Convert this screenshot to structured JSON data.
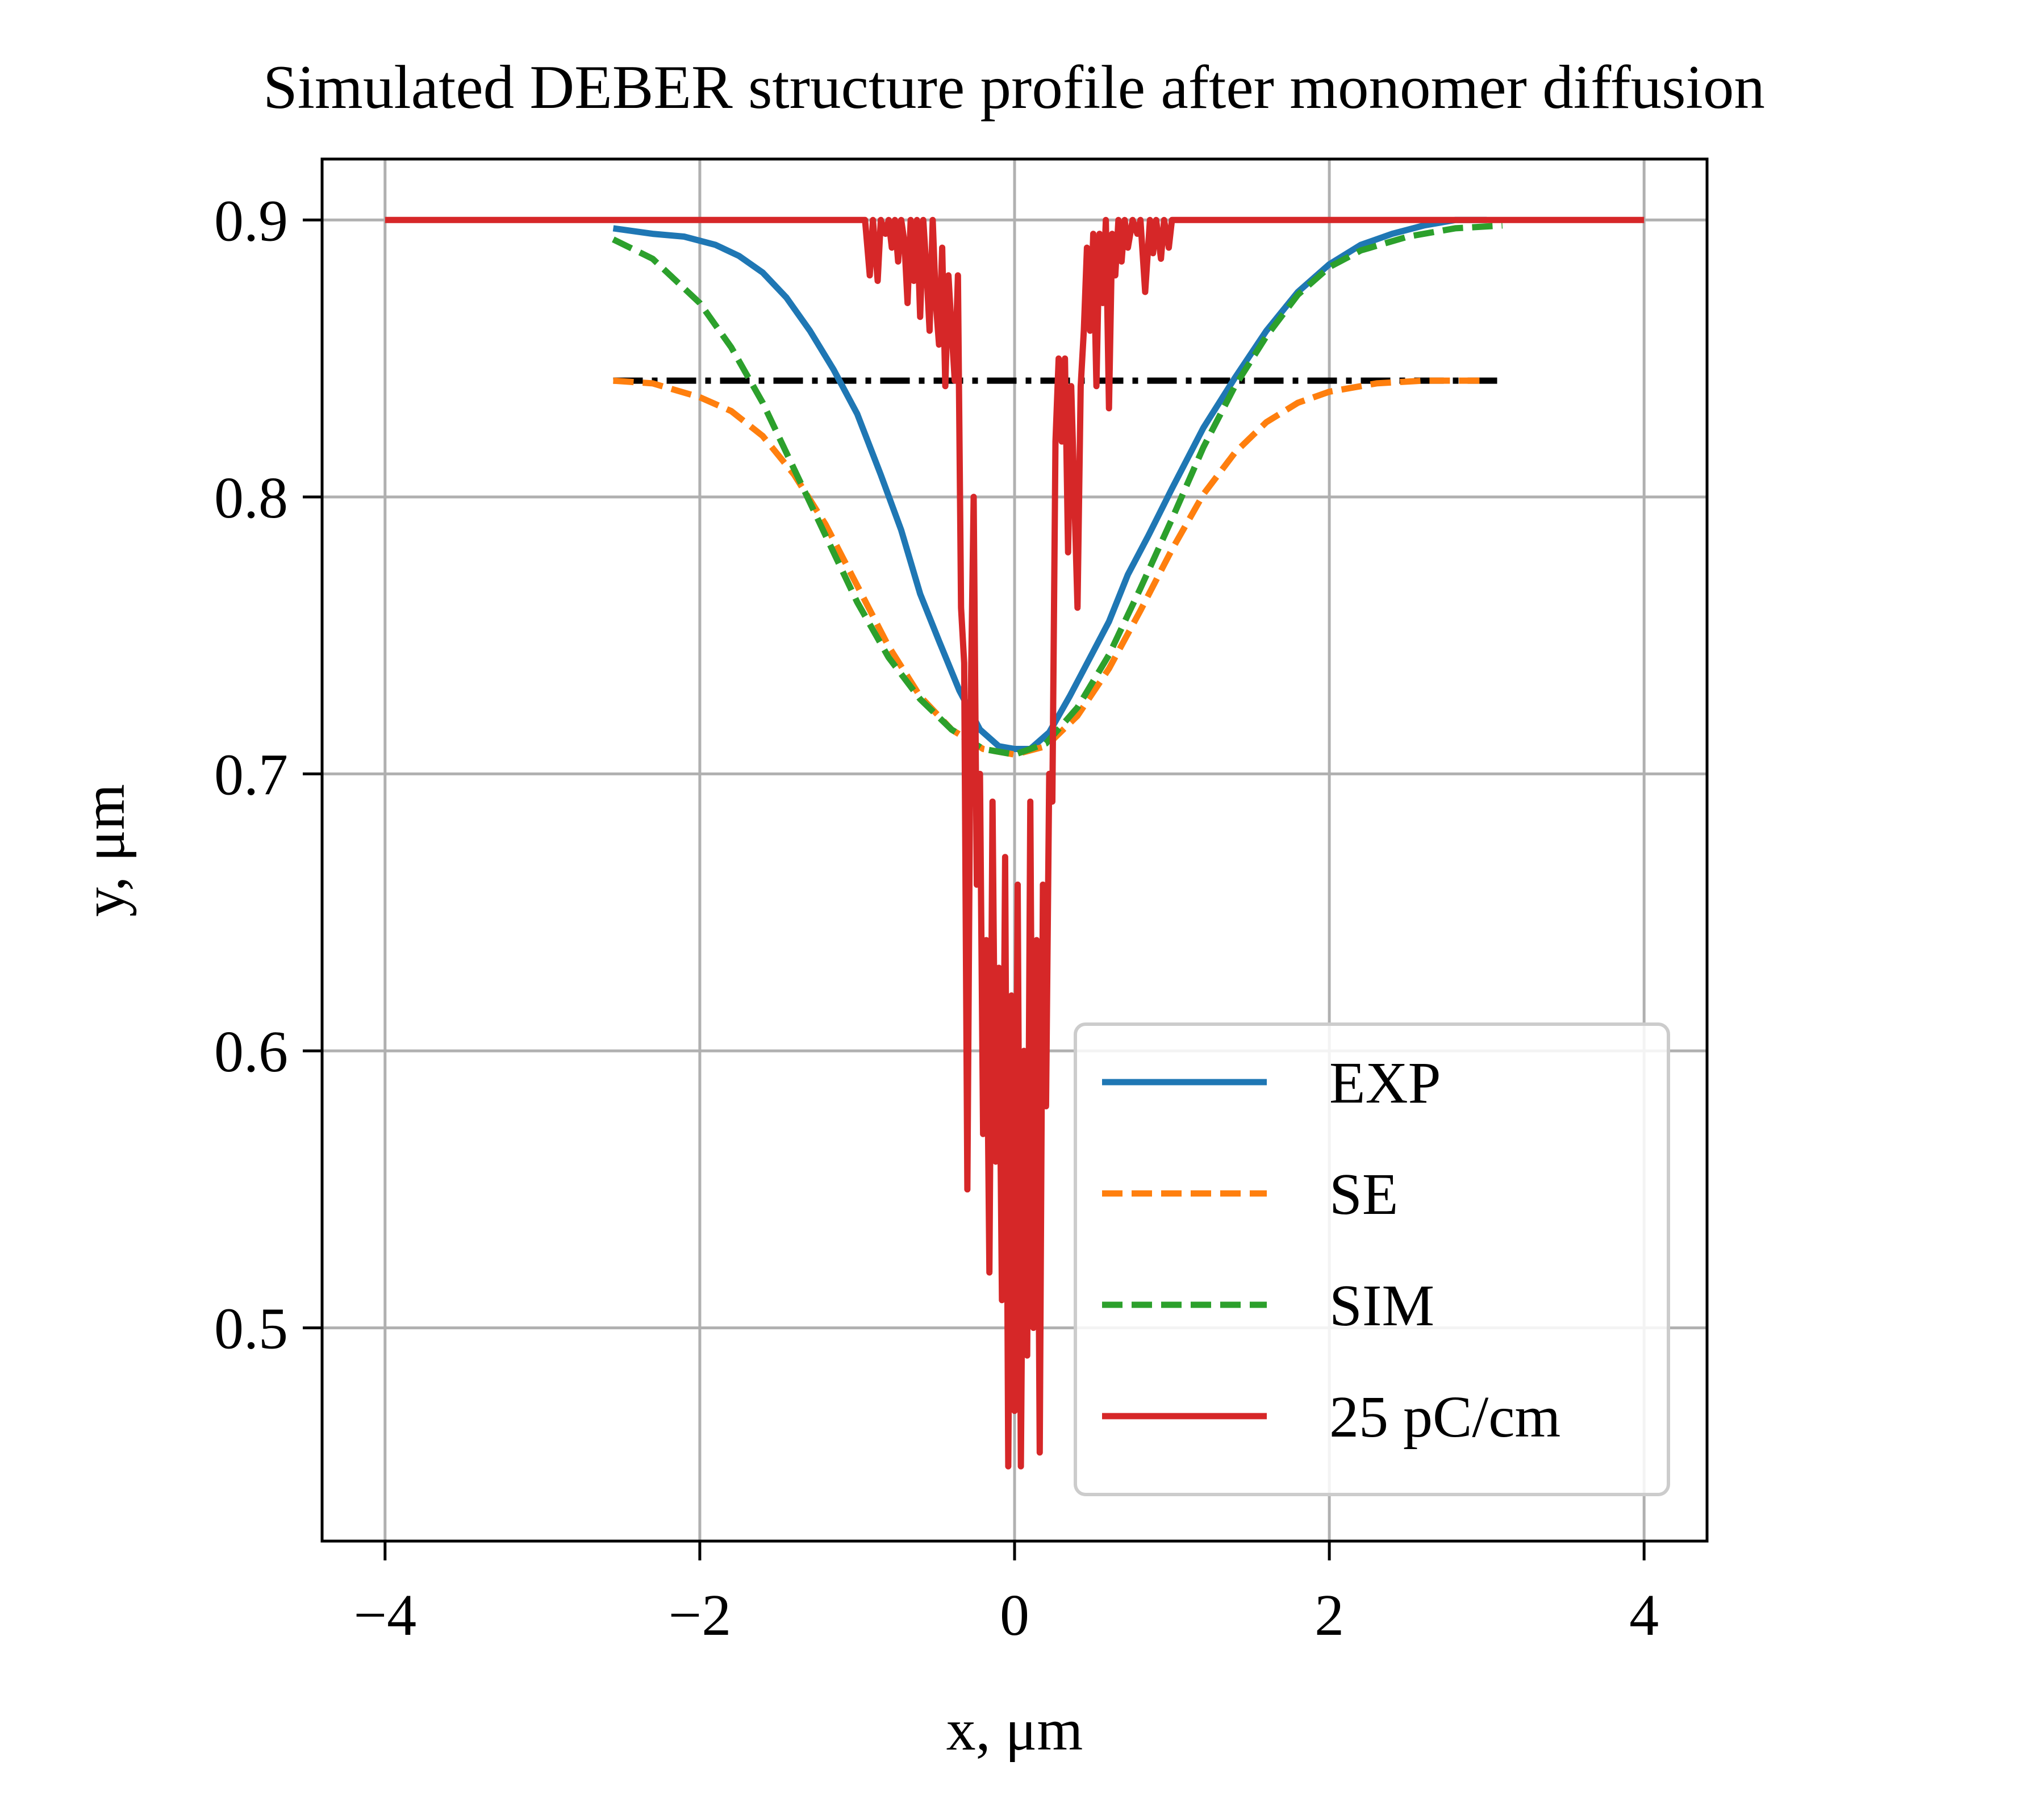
{
  "chart_data": {
    "type": "line",
    "title": "Simulated DEBER structure profile after monomer diffusion",
    "xlabel": "x, μm",
    "ylabel": "y, μm",
    "xlim": [
      -4.4,
      4.4
    ],
    "ylim": [
      0.423,
      0.922
    ],
    "xticks": [
      -4,
      -2,
      0,
      2,
      4
    ],
    "xtick_labels": [
      "−4",
      "−2",
      "0",
      "2",
      "4"
    ],
    "yticks": [
      0.5,
      0.6,
      0.7,
      0.8,
      0.9
    ],
    "ytick_labels": [
      "0.5",
      "0.6",
      "0.7",
      "0.8",
      "0.9"
    ],
    "grid": true,
    "legend_position": "lower-right",
    "series": [
      {
        "name": "EXP",
        "color": "#1f77b4",
        "style": "solid",
        "x": [
          -2.55,
          -2.3,
          -2.1,
          -1.9,
          -1.75,
          -1.6,
          -1.45,
          -1.3,
          -1.15,
          -1.0,
          -0.85,
          -0.72,
          -0.6,
          -0.48,
          -0.35,
          -0.22,
          -0.1,
          0.0,
          0.1,
          0.22,
          0.35,
          0.48,
          0.6,
          0.72,
          0.85,
          1.0,
          1.2,
          1.4,
          1.6,
          1.8,
          2.0,
          2.2,
          2.4,
          2.6,
          2.8,
          3.0
        ],
        "y": [
          0.897,
          0.895,
          0.894,
          0.891,
          0.887,
          0.881,
          0.872,
          0.86,
          0.846,
          0.83,
          0.808,
          0.788,
          0.765,
          0.748,
          0.73,
          0.716,
          0.71,
          0.709,
          0.709,
          0.715,
          0.728,
          0.742,
          0.755,
          0.772,
          0.786,
          0.803,
          0.825,
          0.843,
          0.86,
          0.874,
          0.884,
          0.891,
          0.895,
          0.898,
          0.9,
          0.9
        ]
      },
      {
        "name": "SE",
        "color": "#ff7f0e",
        "style": "dashed",
        "x": [
          -2.55,
          -2.3,
          -2.0,
          -1.8,
          -1.6,
          -1.4,
          -1.2,
          -1.0,
          -0.8,
          -0.6,
          -0.4,
          -0.2,
          0.0,
          0.2,
          0.4,
          0.6,
          0.8,
          1.0,
          1.2,
          1.4,
          1.6,
          1.8,
          2.0,
          2.3,
          2.6,
          3.0
        ],
        "y": [
          0.842,
          0.841,
          0.836,
          0.831,
          0.822,
          0.808,
          0.79,
          0.768,
          0.746,
          0.728,
          0.716,
          0.709,
          0.707,
          0.71,
          0.721,
          0.738,
          0.759,
          0.781,
          0.801,
          0.816,
          0.827,
          0.834,
          0.838,
          0.841,
          0.842,
          0.842
        ]
      },
      {
        "name": "SIM",
        "color": "#2ca02c",
        "style": "dashed",
        "x": [
          -2.55,
          -2.3,
          -2.0,
          -1.8,
          -1.6,
          -1.4,
          -1.2,
          -1.0,
          -0.8,
          -0.6,
          -0.4,
          -0.2,
          0.0,
          0.2,
          0.4,
          0.6,
          0.8,
          1.0,
          1.2,
          1.4,
          1.6,
          1.8,
          2.0,
          2.2,
          2.5,
          2.8,
          3.1
        ],
        "y": [
          0.893,
          0.886,
          0.87,
          0.854,
          0.834,
          0.81,
          0.786,
          0.762,
          0.742,
          0.727,
          0.716,
          0.709,
          0.707,
          0.711,
          0.724,
          0.743,
          0.767,
          0.792,
          0.818,
          0.84,
          0.858,
          0.873,
          0.883,
          0.889,
          0.894,
          0.897,
          0.898
        ]
      },
      {
        "name": "25 pC/cm",
        "color": "#d62728",
        "style": "solid",
        "x": [
          -4.0,
          -0.95,
          -0.92,
          -0.9,
          -0.87,
          -0.85,
          -0.82,
          -0.8,
          -0.78,
          -0.76,
          -0.74,
          -0.72,
          -0.7,
          -0.68,
          -0.66,
          -0.64,
          -0.62,
          -0.6,
          -0.58,
          -0.56,
          -0.54,
          -0.52,
          -0.5,
          -0.48,
          -0.46,
          -0.44,
          -0.42,
          -0.4,
          -0.38,
          -0.36,
          -0.34,
          -0.32,
          -0.3,
          -0.28,
          -0.26,
          -0.24,
          -0.22,
          -0.2,
          -0.18,
          -0.16,
          -0.14,
          -0.12,
          -0.1,
          -0.08,
          -0.06,
          -0.04,
          -0.02,
          0.0,
          0.02,
          0.04,
          0.06,
          0.08,
          0.1,
          0.12,
          0.14,
          0.16,
          0.18,
          0.2,
          0.22,
          0.24,
          0.26,
          0.28,
          0.3,
          0.32,
          0.34,
          0.36,
          0.38,
          0.4,
          0.42,
          0.44,
          0.46,
          0.48,
          0.5,
          0.52,
          0.54,
          0.56,
          0.58,
          0.6,
          0.62,
          0.64,
          0.66,
          0.68,
          0.7,
          0.72,
          0.75,
          0.78,
          0.8,
          0.83,
          0.86,
          0.88,
          0.9,
          0.93,
          0.95,
          0.98,
          1.0,
          1.05,
          4.0
        ],
        "y": [
          0.9,
          0.9,
          0.88,
          0.9,
          0.878,
          0.9,
          0.895,
          0.9,
          0.89,
          0.9,
          0.885,
          0.9,
          0.892,
          0.87,
          0.9,
          0.878,
          0.9,
          0.865,
          0.9,
          0.882,
          0.86,
          0.9,
          0.87,
          0.855,
          0.89,
          0.84,
          0.88,
          0.86,
          0.842,
          0.88,
          0.76,
          0.74,
          0.55,
          0.72,
          0.8,
          0.66,
          0.7,
          0.57,
          0.64,
          0.52,
          0.69,
          0.56,
          0.63,
          0.51,
          0.67,
          0.45,
          0.62,
          0.47,
          0.66,
          0.45,
          0.6,
          0.49,
          0.69,
          0.5,
          0.64,
          0.455,
          0.66,
          0.58,
          0.7,
          0.69,
          0.82,
          0.85,
          0.82,
          0.85,
          0.78,
          0.84,
          0.8,
          0.76,
          0.84,
          0.86,
          0.89,
          0.86,
          0.895,
          0.84,
          0.895,
          0.87,
          0.9,
          0.832,
          0.895,
          0.88,
          0.9,
          0.885,
          0.9,
          0.89,
          0.9,
          0.895,
          0.9,
          0.874,
          0.9,
          0.888,
          0.9,
          0.886,
          0.9,
          0.89,
          0.9,
          0.9,
          0.9
        ]
      },
      {
        "name": "",
        "color": "#000000",
        "style": "dashdot",
        "x": [
          -2.55,
          3.1
        ],
        "y": [
          0.842,
          0.842
        ]
      }
    ]
  }
}
